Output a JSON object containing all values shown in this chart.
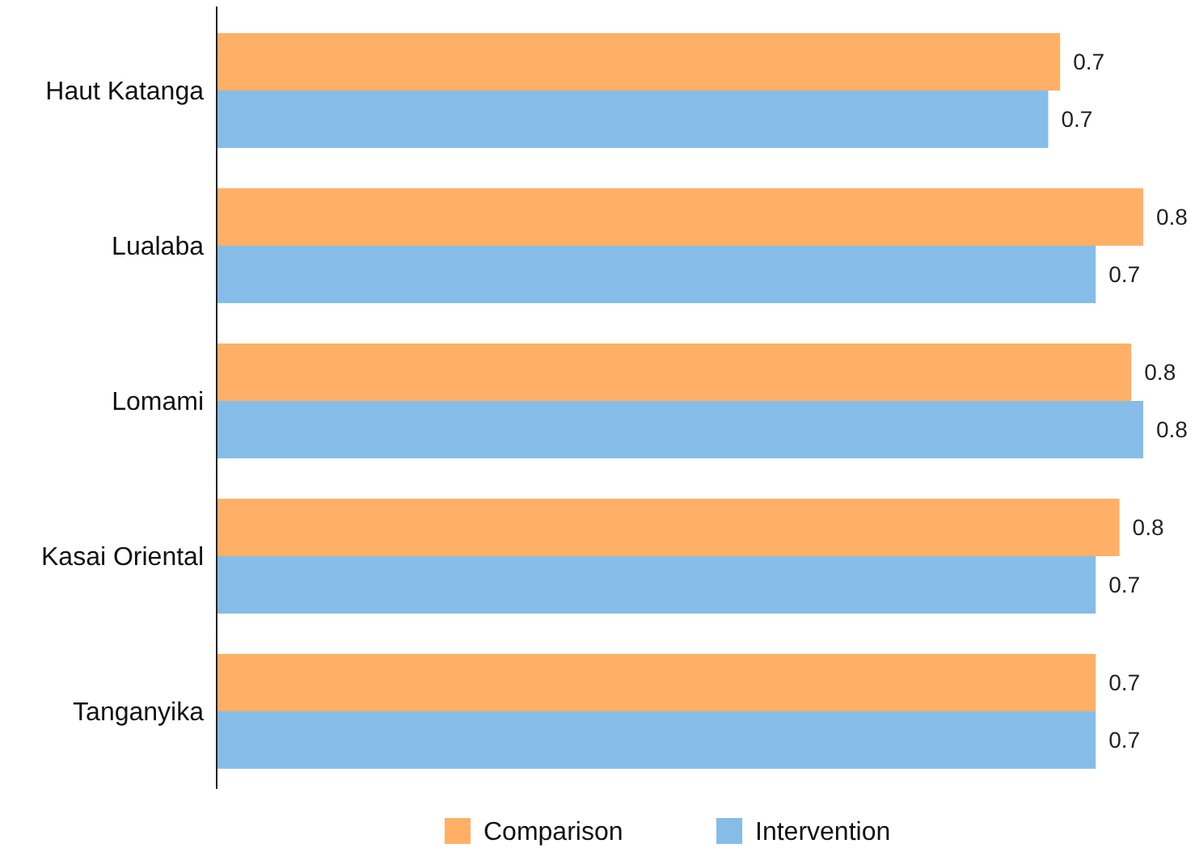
{
  "chart_data": {
    "type": "bar",
    "orientation": "horizontal",
    "categories": [
      "Haut Katanga",
      "Lualaba",
      "Lomami",
      "Kasai Oriental",
      "Tanganyika"
    ],
    "series": [
      {
        "name": "Comparison",
        "color": "#ffb066",
        "values": [
          0.71,
          0.78,
          0.77,
          0.76,
          0.74
        ],
        "value_labels": [
          "0.7",
          "0.8",
          "0.8",
          "0.8",
          "0.7"
        ]
      },
      {
        "name": "Intervention",
        "color": "#85bde8",
        "values": [
          0.7,
          0.74,
          0.78,
          0.74,
          0.74
        ],
        "value_labels": [
          "0.7",
          "0.7",
          "0.8",
          "0.7",
          "0.7"
        ]
      }
    ],
    "legend": "bottom"
  }
}
